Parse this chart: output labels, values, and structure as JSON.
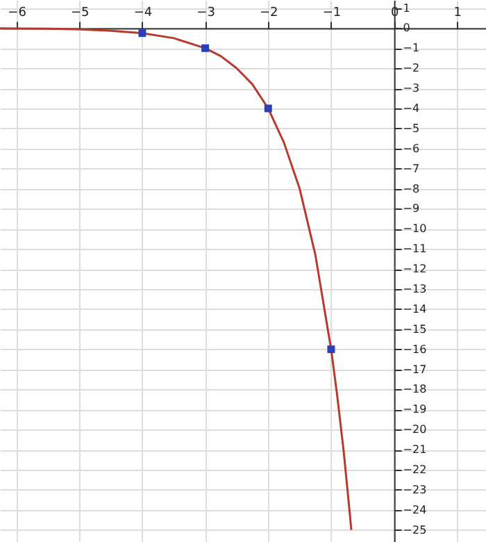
{
  "chart_data": {
    "type": "line",
    "xlim": [
      -6.26,
      1.46
    ],
    "ylim": [
      -25.6,
      1.4
    ],
    "xticks": [
      -6,
      -5,
      -4,
      -3,
      -2,
      -1,
      0,
      1
    ],
    "yticks": [
      -25,
      -24,
      -23,
      -22,
      -21,
      -20,
      -19,
      -18,
      -17,
      -16,
      -15,
      -14,
      -13,
      -12,
      -11,
      -10,
      -9,
      -8,
      -7,
      -6,
      -5,
      -4,
      -3,
      -2,
      -1,
      0,
      1
    ],
    "grid": true,
    "series": [
      {
        "color": "#b83a2c",
        "line_style": "solid",
        "x": [
          -6.26,
          -6,
          -5.5,
          -5,
          -4.5,
          -4,
          -3.5,
          -3,
          -2.75,
          -2.5,
          -2.25,
          -2,
          -1.75,
          -1.5,
          -1.25,
          -1,
          -0.9,
          -0.8,
          -0.7,
          -0.68
        ],
        "values": [
          -0.01,
          -0.02,
          -0.03,
          -0.06,
          -0.13,
          -0.25,
          -0.5,
          -1,
          -1.4,
          -2,
          -2.8,
          -4,
          -5.7,
          -8,
          -11.3,
          -16,
          -18.4,
          -21.1,
          -24.3,
          -25
        ]
      },
      {
        "type": "scatter",
        "color": "#2a3fb8",
        "marker": "square",
        "x": [
          -4,
          -3,
          -2,
          -1
        ],
        "values": [
          -0.25,
          -1,
          -4,
          -16
        ]
      }
    ]
  }
}
